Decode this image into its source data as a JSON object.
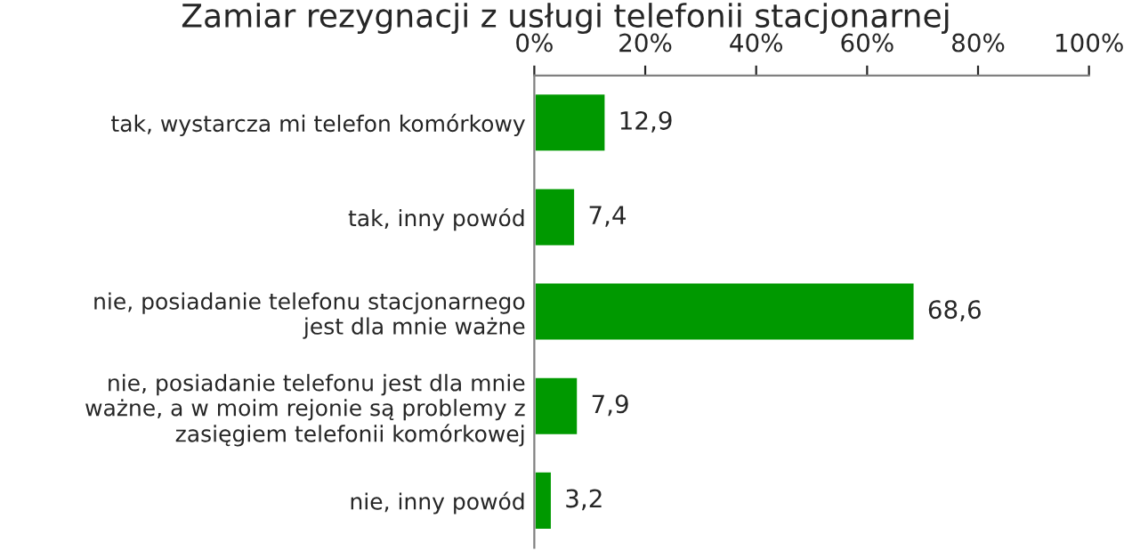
{
  "chart_data": {
    "type": "bar",
    "orientation": "horizontal",
    "title": "Zamiar rezygnacji z usługi telefonii stacjonarnej",
    "categories": [
      "tak, wystarcza mi telefon komórkowy",
      "tak, inny powód",
      "nie, posiadanie telefonu stacjonarnego jest dla mnie ważne",
      "nie, posiadanie telefonu jest dla mnie ważne, a w moim rejonie są problemy z zasięgiem telefonii komórkowej",
      "nie, inny powód"
    ],
    "values": [
      12.9,
      7.4,
      68.6,
      7.9,
      3.2
    ],
    "value_labels": [
      "12,9",
      "7,4",
      "68,6",
      "7,9",
      "3,2"
    ],
    "color": "#009900",
    "xlim": [
      0,
      100
    ],
    "xticks": [
      {
        "value": 0,
        "label": "0%"
      },
      {
        "value": 20,
        "label": "20%"
      },
      {
        "value": 40,
        "label": "40%"
      },
      {
        "value": 60,
        "label": "60%"
      },
      {
        "value": 80,
        "label": "80%"
      },
      {
        "value": 100,
        "label": "100%"
      }
    ],
    "grid": false,
    "legend": false
  }
}
